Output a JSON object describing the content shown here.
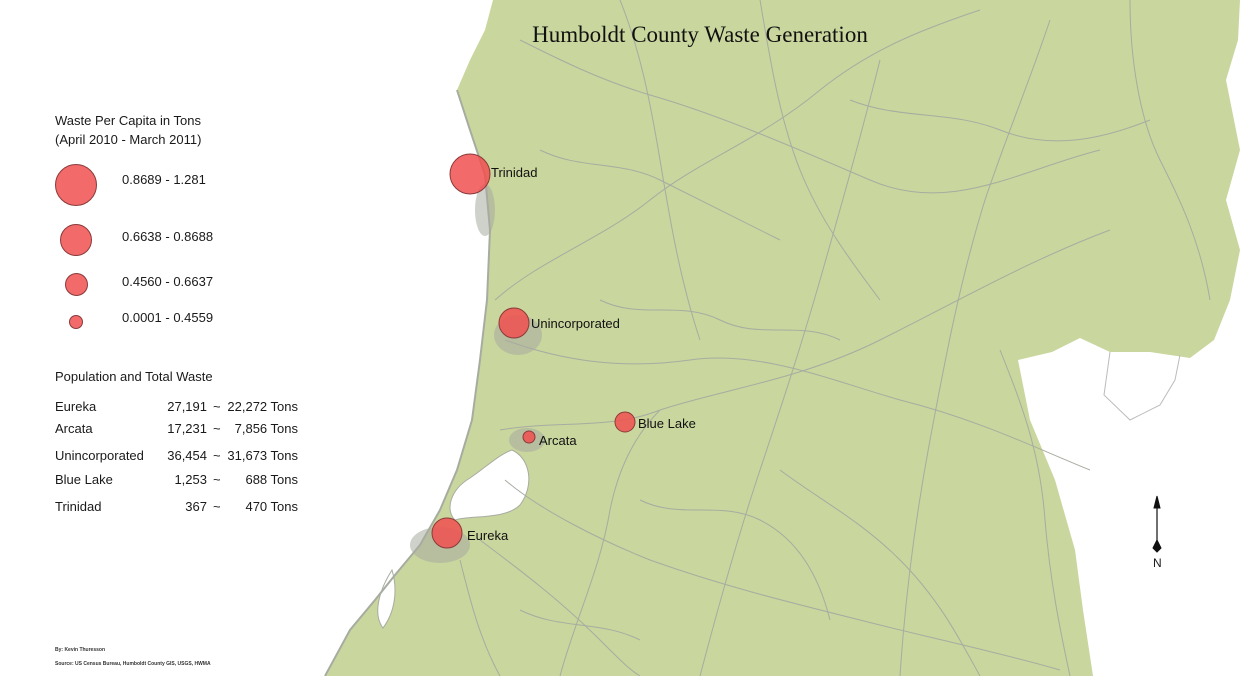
{
  "title": "Humboldt County Waste Generation",
  "colors": {
    "land": "#c9d69e",
    "water": "#ffffff",
    "roads": "#a7aca0",
    "symbol_fill": "#f05050",
    "symbol_stroke": "#8a3a3a"
  },
  "legend": {
    "title_line1": "Waste Per Capita in Tons",
    "title_line2": "(April 2010 - March 2011)",
    "classes": [
      {
        "label": "0.8689 - 1.281"
      },
      {
        "label": "0.6638 - 0.8688"
      },
      {
        "label": "0.4560 - 0.6637"
      },
      {
        "label": "0.0001 - 0.4559"
      }
    ]
  },
  "population_table": {
    "title": "Population and Total Waste",
    "rows": [
      {
        "name": "Eureka",
        "population": "27,191",
        "sep": "~",
        "waste": "22,272 Tons"
      },
      {
        "name": "Arcata",
        "population": "17,231",
        "sep": "~",
        "waste": "7,856 Tons"
      },
      {
        "name": "Unincorporated",
        "population": "36,454",
        "sep": "~",
        "waste": "31,673 Tons"
      },
      {
        "name": "Blue Lake",
        "population": "1,253",
        "sep": "~",
        "waste": "688 Tons"
      },
      {
        "name": "Trinidad",
        "population": "367",
        "sep": "~",
        "waste": "470 Tons"
      }
    ]
  },
  "places": [
    {
      "name": "Trinidad",
      "class": 1
    },
    {
      "name": "Unincorporated",
      "class": 2
    },
    {
      "name": "Blue Lake",
      "class": 3
    },
    {
      "name": "Arcata",
      "class": 4
    },
    {
      "name": "Eureka",
      "class": 2
    }
  ],
  "north_arrow": {
    "label": "N"
  },
  "credits": {
    "author": "By: Kevin Thuresson",
    "source": "Source: US Census Bureau, Humboldt County GIS, USGS, HWMA"
  }
}
